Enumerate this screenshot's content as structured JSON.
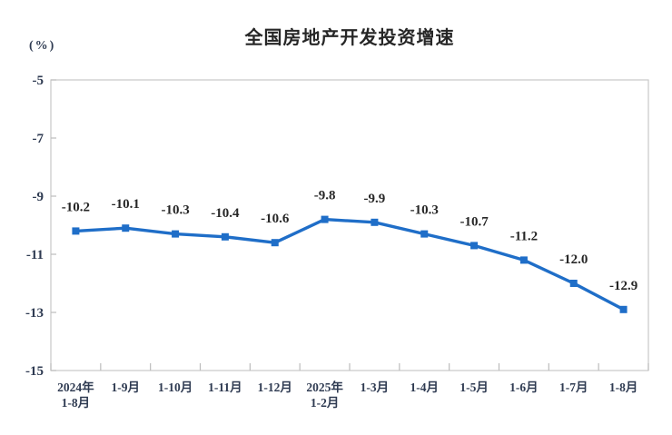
{
  "chart_data": {
    "type": "line",
    "title": "全国房地产开发投资增速",
    "unit_label": "(%)",
    "categories": [
      "2024年\n1-8月",
      "1-9月",
      "1-10月",
      "1-11月",
      "1-12月",
      "2025年\n1-2月",
      "1-3月",
      "1-4月",
      "1-5月",
      "1-6月",
      "1-7月",
      "1-8月"
    ],
    "values": [
      -10.2,
      -10.1,
      -10.3,
      -10.4,
      -10.6,
      -9.8,
      -9.9,
      -10.3,
      -10.7,
      -11.2,
      -12.0,
      -12.9
    ],
    "data_labels": [
      "-10.2",
      "-10.1",
      "-10.3",
      "-10.4",
      "-10.6",
      "-9.8",
      "-9.9",
      "-10.3",
      "-10.7",
      "-11.2",
      "-12.0",
      "-12.9"
    ],
    "ylabel": "(%)",
    "xlabel": "",
    "ylim": [
      -15,
      -5
    ],
    "y_ticks": [
      -5,
      -7,
      -9,
      -11,
      -13,
      -15
    ],
    "grid": false,
    "legend": false,
    "marker": "square",
    "colors": {
      "line": "#1f6ec8",
      "marker": "#1f6ec8",
      "frame": "#c9c9c9",
      "tick": "#bcbcbc",
      "data_label_text": "#262626",
      "axis_label_text": "#2f3b52",
      "title_text": "#262626"
    }
  }
}
